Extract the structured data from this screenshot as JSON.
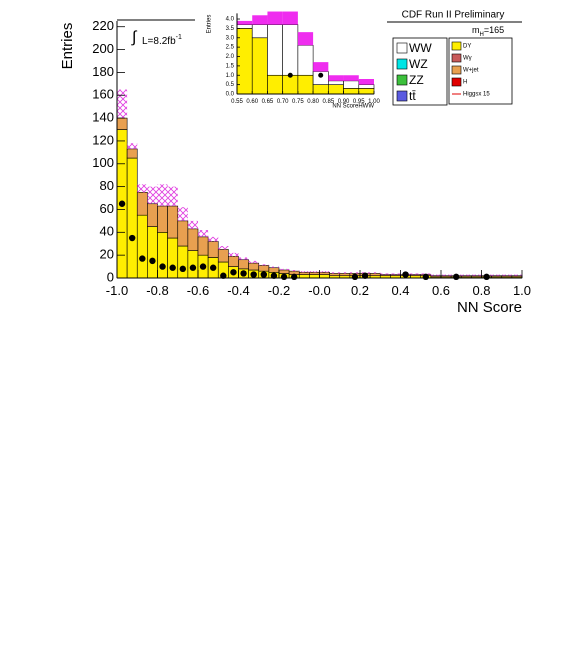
{
  "chart_data": [
    {
      "type": "histogram",
      "title": "CDF Run II Preliminary",
      "xlabel": "NN Score",
      "ylabel": "Entries",
      "mass_label": {
        "text": "m",
        "sub": "H",
        "rest": "=165"
      },
      "lumi_label": {
        "integral": "∫",
        "text": "L=8.2fb",
        "sup": "-1"
      },
      "xlim": [
        -1.0,
        1.0
      ],
      "ylim": [
        0,
        225
      ],
      "xticks": [
        {
          "value": -1.0,
          "label": "-1.0"
        },
        {
          "value": -0.8,
          "label": "-0.8"
        },
        {
          "value": -0.6,
          "label": "-0.6"
        },
        {
          "value": -0.4,
          "label": "-0.4"
        },
        {
          "value": -0.2,
          "label": "-0.2"
        },
        {
          "value": 0,
          "label": "-0.0"
        },
        0.2,
        0.4,
        0.6,
        0.8,
        {
          "value": 1.0,
          "label": "1.0"
        }
      ],
      "yticks": [
        0,
        20,
        40,
        60,
        80,
        100,
        120,
        140,
        160,
        180,
        200,
        220
      ],
      "bins": [
        -1.0,
        -0.95,
        -0.9,
        -0.85,
        -0.8,
        -0.75,
        -0.7,
        -0.65,
        -0.6,
        -0.55,
        -0.5,
        -0.45,
        -0.4,
        -0.35,
        -0.3,
        -0.25,
        -0.2,
        -0.15,
        -0.1,
        -0.05,
        0,
        0.05,
        0.1,
        0.15,
        0.2,
        0.25,
        0.3,
        0.35,
        0.4,
        0.45,
        0.5,
        0.55,
        0.6,
        0.65,
        0.7,
        0.75,
        0.8,
        0.85,
        0.9,
        0.95,
        1.0
      ],
      "series": [
        {
          "name": "WW",
          "color": "#ffffff"
        },
        {
          "name": "WZ",
          "color": "#00e5e5"
        },
        {
          "name": "ZZ",
          "color": "#3cc03c"
        },
        {
          "name": "tt̄",
          "color": "#5a5ae0"
        },
        {
          "name": "DY",
          "color": "#ffee00",
          "values": [
            130,
            105,
            55,
            45,
            40,
            35,
            28,
            24,
            20,
            18,
            14,
            10,
            8,
            7,
            6,
            5,
            4,
            3,
            3,
            3,
            3,
            2,
            2,
            2,
            2,
            2,
            2,
            2,
            2,
            2,
            2,
            1,
            1,
            1,
            1,
            1,
            1,
            1,
            1,
            1
          ]
        },
        {
          "name": "Wγ",
          "color": "#c85a5a"
        },
        {
          "name": "W+jet",
          "color": "#e8a050",
          "values": [
            10,
            8,
            20,
            20,
            23,
            28,
            22,
            19,
            16,
            14,
            11,
            9,
            8,
            6,
            5,
            4,
            3,
            3,
            2,
            2,
            2,
            2,
            2,
            2,
            2,
            2,
            1,
            1,
            1,
            1,
            1,
            1,
            1,
            1,
            1,
            1,
            1,
            1,
            1,
            1
          ]
        },
        {
          "name": "H",
          "color": "#e00000"
        },
        {
          "name": "Higgsx 15",
          "color": "#e00000",
          "style": "line"
        }
      ],
      "error_band": {
        "color": "#e040e0",
        "upper": [
          165,
          118,
          82,
          80,
          82,
          80,
          62,
          50,
          42,
          36,
          28,
          22,
          18,
          15,
          12,
          10,
          8,
          7,
          6,
          6,
          6,
          5,
          5,
          5,
          5,
          5,
          4,
          4,
          4,
          4,
          4,
          3,
          3,
          3,
          3,
          3,
          3,
          3,
          3,
          3
        ]
      },
      "data_points": {
        "x": [
          -0.975,
          -0.925,
          -0.875,
          -0.825,
          -0.775,
          -0.725,
          -0.675,
          -0.625,
          -0.575,
          -0.525,
          -0.475,
          -0.425,
          -0.375,
          -0.325,
          -0.275,
          -0.225,
          -0.175,
          -0.125,
          0.175,
          0.225,
          0.425,
          0.525,
          0.675,
          0.825
        ],
        "values": [
          65,
          35,
          17,
          15,
          10,
          9,
          8,
          9,
          10,
          9,
          2,
          5,
          4,
          3,
          3,
          2,
          1,
          1,
          1,
          2,
          3,
          1,
          1,
          1
        ]
      }
    },
    {
      "type": "histogram",
      "xlabel": "NN ScoreHWW",
      "ylabel": "Entries",
      "xlim": [
        0.55,
        1.0
      ],
      "ylim": [
        0,
        4.3
      ],
      "xticks": [
        0.55,
        {
          "value": 0.6,
          "label": "0.60"
        },
        0.65,
        {
          "value": 0.7,
          "label": "0.70"
        },
        0.75,
        {
          "value": 0.8,
          "label": "0.80"
        },
        0.85,
        {
          "value": 0.9,
          "label": "0.90"
        },
        0.95,
        {
          "value": 1.0,
          "label": "1.00"
        }
      ],
      "yticks": [
        {
          "value": 0,
          "label": "0.0"
        },
        0.5,
        {
          "value": 1,
          "label": "1.0"
        },
        1.5,
        {
          "value": 2,
          "label": "2.0"
        },
        2.5,
        {
          "value": 3,
          "label": "3.0"
        },
        3.5,
        {
          "value": 4,
          "label": "4.0"
        }
      ],
      "bins": [
        0.55,
        0.6,
        0.65,
        0.7,
        0.75,
        0.8,
        0.85,
        0.9,
        0.95,
        1.0
      ],
      "series": [
        {
          "color": "#ffee00",
          "values": [
            3.5,
            3.0,
            1.0,
            1.0,
            1.0,
            0.5,
            0.5,
            0.3,
            0.3
          ]
        },
        {
          "color": "#ffffff",
          "values": [
            0.2,
            0.7,
            2.7,
            2.7,
            1.6,
            0.7,
            0.2,
            0.4,
            0.2
          ]
        }
      ],
      "error_band": {
        "color": "#ee22ee",
        "upper": [
          3.9,
          4.2,
          4.4,
          4.4,
          3.3,
          1.7,
          1.0,
          1.0,
          0.8
        ]
      },
      "data_points": {
        "x": [
          0.725,
          0.825
        ],
        "values": [
          1.0,
          1.0
        ]
      }
    }
  ]
}
